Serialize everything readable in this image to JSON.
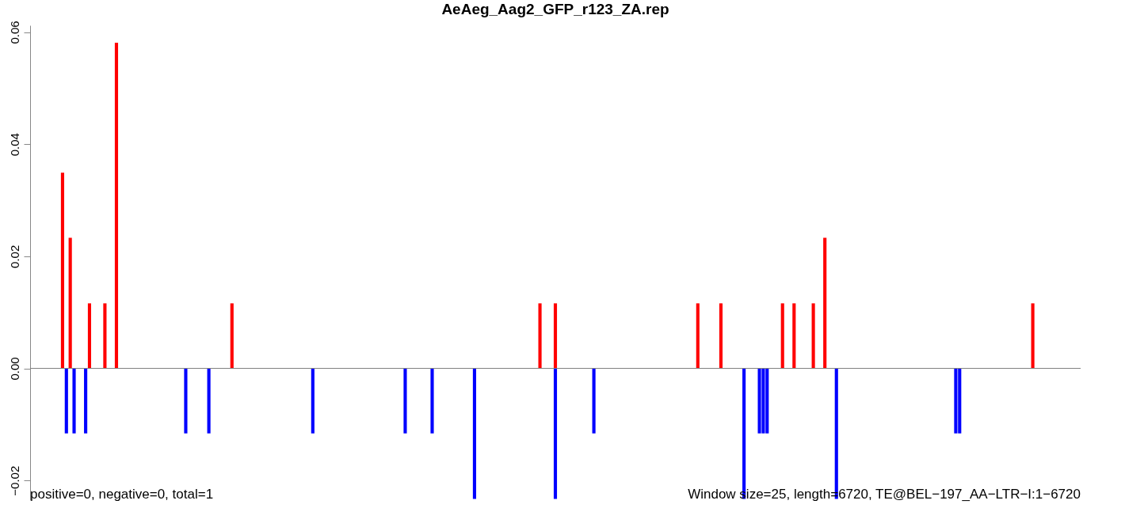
{
  "chart_data": {
    "type": "bar",
    "title": "AeAeg_Aag2_GFP_r123_ZA.rep",
    "categories": [
      null,
      null,
      null,
      null,
      null,
      null,
      null,
      null,
      null,
      null,
      null,
      null,
      null,
      null,
      null,
      null,
      null,
      null,
      null,
      null,
      null,
      null,
      null,
      null,
      null,
      null,
      null,
      null,
      null,
      null,
      null,
      null,
      null,
      null,
      null,
      null,
      null,
      null,
      null,
      null,
      null,
      null,
      null,
      null,
      null,
      null,
      null,
      null,
      null,
      null,
      null,
      null,
      null,
      null,
      null,
      null,
      null,
      null,
      null,
      null,
      null,
      null,
      null,
      null,
      null,
      null,
      null,
      null,
      null,
      null,
      null,
      null,
      null,
      null,
      null,
      null,
      null,
      null,
      null,
      null,
      null,
      null,
      null,
      null,
      null,
      null,
      null,
      null,
      null,
      null,
      null,
      null,
      null,
      null,
      null,
      null,
      null,
      null,
      null,
      null,
      null,
      null,
      null,
      null,
      null,
      null,
      null,
      null,
      null,
      null,
      null,
      null,
      null,
      null,
      null,
      null,
      null,
      null,
      null,
      null,
      null,
      null,
      null,
      null,
      null,
      null,
      null,
      null,
      null,
      null,
      null,
      null,
      null,
      null,
      null,
      null,
      null,
      null,
      null,
      null,
      null,
      null,
      null,
      null,
      null,
      null,
      null,
      null,
      null,
      null,
      null,
      null,
      null,
      null,
      null,
      null,
      null,
      null,
      null,
      null,
      null,
      null,
      null,
      null,
      null,
      null,
      null,
      null,
      null,
      null,
      null,
      null,
      null,
      null,
      null,
      null,
      null,
      null,
      null,
      null,
      null,
      null,
      null,
      null,
      null,
      null,
      null,
      null,
      null,
      null,
      null,
      null,
      null,
      null,
      null,
      null,
      null,
      null,
      null,
      null,
      null,
      null,
      null,
      null,
      null,
      null,
      null,
      null,
      null,
      null,
      null,
      null,
      null,
      null,
      null,
      null,
      null,
      null,
      null,
      null,
      null,
      null,
      null,
      null,
      null,
      null,
      null,
      null,
      null,
      null,
      null,
      null,
      null,
      null,
      null,
      null,
      null,
      null,
      null,
      null,
      null,
      null,
      null,
      null,
      null,
      null,
      null,
      null,
      null,
      null,
      null,
      null,
      null,
      null,
      null,
      null,
      null,
      null,
      null,
      null,
      null,
      null,
      null,
      null,
      null,
      null,
      null,
      null,
      null,
      null,
      null,
      null,
      null
    ],
    "series": [
      {
        "color": "#ff0000",
        "values": [
          null,
          null,
          null,
          null,
          null,
          null,
          null,
          null,
          0.0349,
          null,
          0.0233,
          null,
          null,
          null,
          null,
          0.0116,
          null,
          null,
          null,
          0.0116,
          null,
          null,
          0.0581,
          null,
          null,
          null,
          null,
          null,
          null,
          null,
          null,
          null,
          null,
          null,
          null,
          null,
          null,
          null,
          null,
          null,
          null,
          null,
          null,
          null,
          null,
          null,
          null,
          null,
          null,
          null,
          null,
          null,
          0.0116,
          null,
          null,
          null,
          null,
          null,
          null,
          null,
          null,
          null,
          null,
          null,
          null,
          null,
          null,
          null,
          null,
          null,
          null,
          null,
          null,
          null,
          null,
          null,
          null,
          null,
          null,
          null,
          null,
          null,
          null,
          null,
          null,
          null,
          null,
          null,
          null,
          null,
          null,
          null,
          null,
          null,
          null,
          null,
          null,
          null,
          null,
          null,
          null,
          null,
          null,
          null,
          null,
          null,
          null,
          null,
          null,
          null,
          null,
          null,
          null,
          null,
          null,
          null,
          null,
          null,
          null,
          null,
          null,
          null,
          null,
          null,
          null,
          null,
          null,
          null,
          null,
          null,
          null,
          null,
          0.0116,
          null,
          null,
          null,
          0.0116,
          null,
          null,
          null,
          null,
          null,
          null,
          null,
          null,
          null,
          null,
          null,
          null,
          null,
          null,
          null,
          null,
          null,
          null,
          null,
          null,
          null,
          null,
          null,
          null,
          null,
          null,
          null,
          null,
          null,
          null,
          null,
          null,
          null,
          null,
          null,
          null,
          0.0116,
          null,
          null,
          null,
          null,
          null,
          0.0116,
          null,
          null,
          null,
          null,
          null,
          null,
          null,
          null,
          null,
          null,
          null,
          null,
          null,
          null,
          null,
          0.0116,
          null,
          null,
          0.0116,
          null,
          null,
          null,
          null,
          0.0116,
          null,
          null,
          0.0233,
          null,
          null,
          null,
          null,
          null,
          null,
          null,
          null,
          null,
          null,
          null,
          null,
          null,
          null,
          null,
          null,
          null,
          null,
          null,
          null,
          null,
          null,
          null,
          null,
          null,
          null,
          null,
          null,
          null,
          null,
          null,
          null,
          null,
          null,
          null,
          null,
          null,
          null,
          null,
          null,
          null,
          null,
          null,
          null,
          null,
          null,
          null,
          null,
          null,
          null,
          null,
          null,
          null,
          0.0116,
          null,
          null,
          null,
          null,
          null,
          null,
          null,
          null,
          null,
          null,
          null,
          null
        ]
      },
      {
        "color": "#0000ff",
        "values": [
          null,
          null,
          null,
          null,
          null,
          null,
          null,
          null,
          null,
          -0.0116,
          null,
          -0.0116,
          null,
          null,
          -0.0116,
          null,
          null,
          null,
          null,
          null,
          null,
          null,
          null,
          null,
          null,
          null,
          null,
          null,
          null,
          null,
          null,
          null,
          null,
          null,
          null,
          null,
          null,
          null,
          null,
          null,
          -0.0116,
          null,
          null,
          null,
          null,
          null,
          -0.0116,
          null,
          null,
          null,
          null,
          null,
          null,
          null,
          null,
          null,
          null,
          null,
          null,
          null,
          null,
          null,
          null,
          null,
          null,
          null,
          null,
          null,
          null,
          null,
          null,
          null,
          null,
          -0.0116,
          null,
          null,
          null,
          null,
          null,
          null,
          null,
          null,
          null,
          null,
          null,
          null,
          null,
          null,
          null,
          null,
          null,
          null,
          null,
          null,
          null,
          null,
          null,
          -0.0116,
          null,
          null,
          null,
          null,
          null,
          null,
          -0.0116,
          null,
          null,
          null,
          null,
          null,
          null,
          null,
          null,
          null,
          null,
          -0.0233,
          null,
          null,
          null,
          null,
          null,
          null,
          null,
          null,
          null,
          null,
          null,
          null,
          null,
          null,
          null,
          null,
          null,
          null,
          null,
          null,
          -0.0233,
          null,
          null,
          null,
          null,
          null,
          null,
          null,
          null,
          null,
          -0.0116,
          null,
          null,
          null,
          null,
          null,
          null,
          null,
          null,
          null,
          null,
          null,
          null,
          null,
          null,
          null,
          null,
          null,
          null,
          null,
          null,
          null,
          null,
          null,
          null,
          null,
          null,
          null,
          null,
          null,
          null,
          null,
          null,
          null,
          null,
          null,
          null,
          null,
          null,
          -0.0233,
          null,
          null,
          null,
          -0.0116,
          -0.0116,
          -0.0116,
          null,
          null,
          null,
          null,
          null,
          null,
          null,
          null,
          null,
          null,
          null,
          null,
          null,
          null,
          null,
          null,
          null,
          -0.0233,
          null,
          null,
          null,
          null,
          null,
          null,
          null,
          null,
          null,
          null,
          null,
          null,
          null,
          null,
          null,
          null,
          null,
          null,
          null,
          null,
          null,
          null,
          null,
          null,
          null,
          null,
          null,
          null,
          null,
          null,
          -0.0116,
          -0.0116,
          null,
          null,
          null,
          null,
          null,
          null,
          null,
          null,
          null,
          null,
          null,
          null,
          null,
          null,
          null,
          null,
          null,
          null,
          null,
          null,
          null,
          null,
          null,
          null,
          null,
          null,
          null,
          null,
          null,
          null,
          null
        ]
      }
    ],
    "ylim": [
      -0.0235,
      0.0612
    ],
    "yticks": [
      {
        "value": -0.02,
        "label": "−0.02"
      },
      {
        "value": 0,
        "label": "0.00"
      },
      {
        "value": 0.02,
        "label": "0.02"
      },
      {
        "value": 0.04,
        "label": "0.04"
      },
      {
        "value": 0.06,
        "label": "0.06"
      }
    ],
    "ref_lines": [
      {
        "axis": "y",
        "value": 0,
        "color": "#808080"
      }
    ],
    "annotations": [
      "positive=0, negative=0, total=1",
      "Window size=25, length=6720, TE@BEL−197_AA−LTR−I:1−6720"
    ],
    "grid": false,
    "legend": false,
    "tick_labels": "y"
  }
}
